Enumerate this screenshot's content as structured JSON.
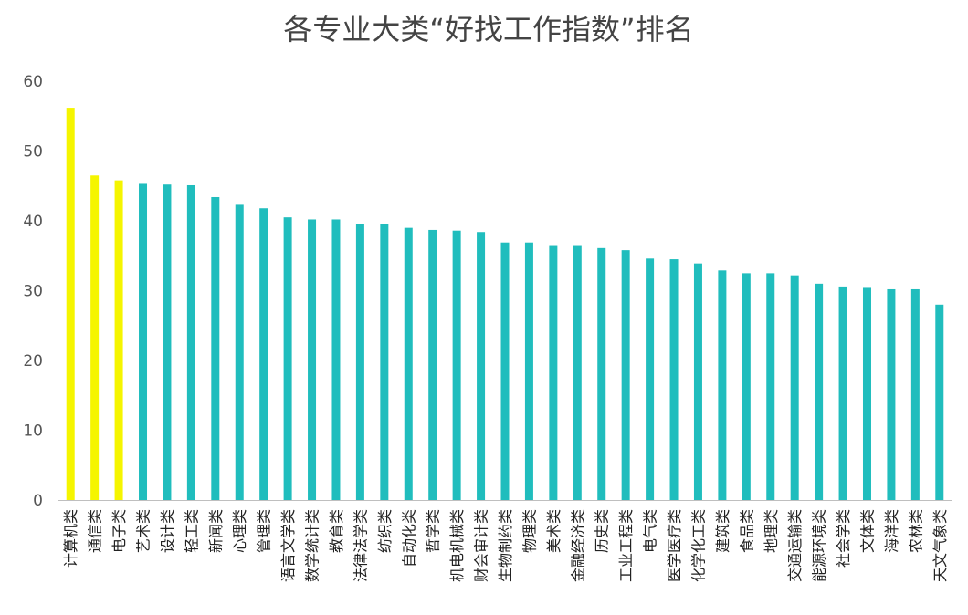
{
  "chart_data": {
    "type": "bar",
    "title": "各专业大类“好找工作指数”排名",
    "xlabel": "",
    "ylabel": "",
    "ylim": [
      0,
      60
    ],
    "yticks": [
      "0",
      "10",
      "20",
      "30",
      "40",
      "50",
      "60"
    ],
    "grid": false,
    "legend": "none",
    "colors": {
      "highlight": "#F5F500",
      "default": "#20BDBD",
      "axis": "#BFBFBF"
    },
    "categories": [
      "计算机类",
      "通信类",
      "电子类",
      "艺术类",
      "设计类",
      "轻工类",
      "新闻类",
      "心理类",
      "管理类",
      "语言文学类",
      "数学统计类",
      "教育类",
      "法律法学类",
      "纺织类",
      "自动化类",
      "哲学类",
      "机电机械类",
      "财会审计类",
      "生物制药类",
      "物理类",
      "美术类",
      "金融经济类",
      "历史类",
      "工业工程类",
      "电气类",
      "医学医疗类",
      "化学化工类",
      "建筑类",
      "食品类",
      "地理类",
      "交通运输类",
      "能源环境类",
      "社会学类",
      "文体类",
      "海洋类",
      "农林类",
      "天文气象类"
    ],
    "values": [
      56.2,
      46.5,
      45.8,
      45.3,
      45.2,
      45.1,
      43.4,
      42.3,
      41.8,
      40.5,
      40.2,
      40.2,
      39.6,
      39.5,
      39.0,
      38.7,
      38.6,
      38.4,
      36.9,
      36.9,
      36.4,
      36.4,
      36.1,
      35.8,
      34.6,
      34.5,
      33.9,
      32.9,
      32.5,
      32.5,
      32.2,
      31.0,
      30.6,
      30.4,
      30.2,
      30.2,
      28.0
    ],
    "highlight_count": 3
  }
}
